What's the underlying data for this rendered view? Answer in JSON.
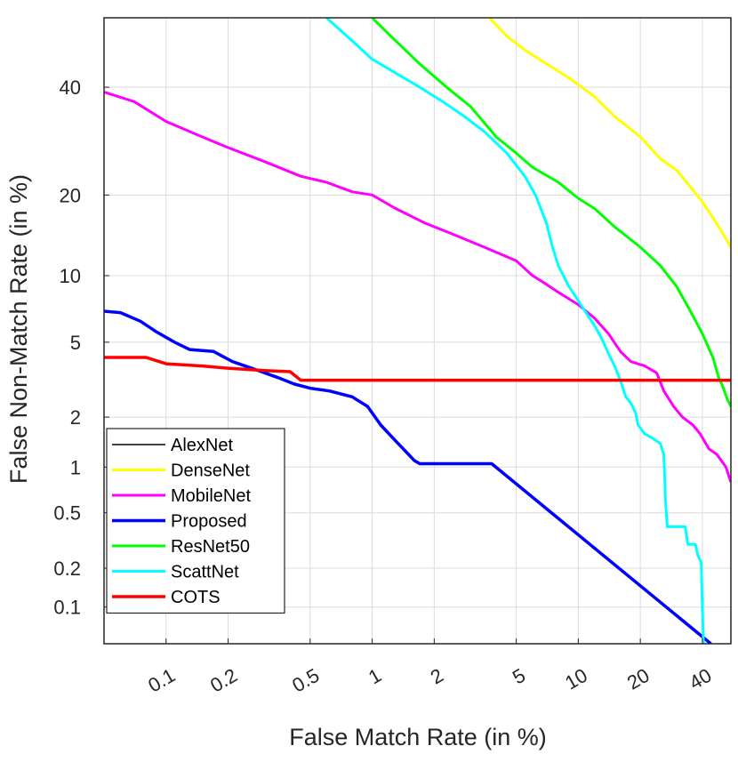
{
  "chart_data": {
    "type": "line",
    "title": "",
    "xlabel": "False Match Rate (in %)",
    "ylabel": "False Non-Match Rate (in %)",
    "xscale": "log",
    "yscale": "probit",
    "xlim": [
      0.05,
      55
    ],
    "ylim": [
      0.05,
      55
    ],
    "grid": true,
    "legend_position": "bottom-left",
    "x_ticks": [
      {
        "value": 0.1,
        "label": "0.1"
      },
      {
        "value": 0.2,
        "label": "0.2"
      },
      {
        "value": 0.5,
        "label": "0.5"
      },
      {
        "value": 1,
        "label": "1"
      },
      {
        "value": 2,
        "label": "2"
      },
      {
        "value": 5,
        "label": "5"
      },
      {
        "value": 10,
        "label": "10"
      },
      {
        "value": 20,
        "label": "20"
      },
      {
        "value": 40,
        "label": "40"
      }
    ],
    "y_ticks": [
      {
        "value": 40,
        "label": "40"
      },
      {
        "value": 20,
        "label": "20"
      },
      {
        "value": 10,
        "label": "10"
      },
      {
        "value": 5,
        "label": "5"
      },
      {
        "value": 2,
        "label": "2"
      },
      {
        "value": 1,
        "label": "1"
      },
      {
        "value": 0.5,
        "label": "0.5"
      },
      {
        "value": 0.2,
        "label": "0.2"
      },
      {
        "value": 0.1,
        "label": "0.1"
      }
    ],
    "series": [
      {
        "name": "AlexNet",
        "color": "#000000",
        "stroke": 1.5,
        "points": []
      },
      {
        "name": "DenseNet",
        "color": "#ffff00",
        "stroke": 3,
        "points": [
          [
            3.7,
            55
          ],
          [
            4.5,
            51
          ],
          [
            5.5,
            48
          ],
          [
            7,
            45
          ],
          [
            9,
            42
          ],
          [
            12,
            38
          ],
          [
            15,
            34
          ],
          [
            20,
            30
          ],
          [
            25,
            26
          ],
          [
            30,
            24
          ],
          [
            40,
            19
          ],
          [
            48,
            15.5
          ],
          [
            55,
            13
          ]
        ]
      },
      {
        "name": "MobileNet",
        "color": "#ff00ff",
        "stroke": 3,
        "points": [
          [
            0.05,
            39
          ],
          [
            0.07,
            37
          ],
          [
            0.1,
            33
          ],
          [
            0.15,
            30
          ],
          [
            0.2,
            28
          ],
          [
            0.3,
            25.5
          ],
          [
            0.45,
            23
          ],
          [
            0.6,
            22
          ],
          [
            0.8,
            20.5
          ],
          [
            1,
            20
          ],
          [
            1.3,
            18
          ],
          [
            1.8,
            16
          ],
          [
            2.5,
            14.5
          ],
          [
            3.5,
            13
          ],
          [
            5,
            11.5
          ],
          [
            6,
            10
          ],
          [
            7,
            9.2
          ],
          [
            8,
            8.5
          ],
          [
            10,
            7.5
          ],
          [
            12,
            6.5
          ],
          [
            14,
            5.5
          ],
          [
            16,
            4.5
          ],
          [
            18,
            4
          ],
          [
            21,
            3.8
          ],
          [
            24,
            3.5
          ],
          [
            26,
            2.8
          ],
          [
            29,
            2.3
          ],
          [
            32,
            2.0
          ],
          [
            36,
            1.8
          ],
          [
            39,
            1.6
          ],
          [
            43,
            1.3
          ],
          [
            47,
            1.2
          ],
          [
            52,
            1.0
          ],
          [
            55,
            0.8
          ]
        ]
      },
      {
        "name": "Proposed",
        "color": "#0000ff",
        "stroke": 3.5,
        "points": [
          [
            0.05,
            7.0
          ],
          [
            0.06,
            6.9
          ],
          [
            0.075,
            6.3
          ],
          [
            0.09,
            5.6
          ],
          [
            0.11,
            5.0
          ],
          [
            0.13,
            4.6
          ],
          [
            0.17,
            4.5
          ],
          [
            0.21,
            4.0
          ],
          [
            0.28,
            3.6
          ],
          [
            0.35,
            3.3
          ],
          [
            0.42,
            3.05
          ],
          [
            0.5,
            2.9
          ],
          [
            0.62,
            2.8
          ],
          [
            0.8,
            2.6
          ],
          [
            0.95,
            2.3
          ],
          [
            1.1,
            1.8
          ],
          [
            1.3,
            1.45
          ],
          [
            1.5,
            1.2
          ],
          [
            1.6,
            1.1
          ],
          [
            1.7,
            1.05
          ],
          [
            3.8,
            1.05
          ],
          [
            44,
            0.05
          ]
        ]
      },
      {
        "name": "ResNet50",
        "color": "#00ff00",
        "stroke": 3,
        "points": [
          [
            1.0,
            55
          ],
          [
            1.3,
            50
          ],
          [
            1.7,
            45
          ],
          [
            2.3,
            40
          ],
          [
            3,
            36
          ],
          [
            4,
            30
          ],
          [
            5,
            27
          ],
          [
            6,
            24.5
          ],
          [
            8,
            22
          ],
          [
            10,
            19.5
          ],
          [
            12,
            18
          ],
          [
            15,
            15.5
          ],
          [
            20,
            13
          ],
          [
            25,
            11
          ],
          [
            30,
            9
          ],
          [
            35,
            7
          ],
          [
            40,
            5.5
          ],
          [
            45,
            4.2
          ],
          [
            48,
            3.3
          ],
          [
            50,
            3.0
          ],
          [
            53,
            2.5
          ],
          [
            55,
            2.3
          ]
        ]
      },
      {
        "name": "ScattNet",
        "color": "#00ffff",
        "stroke": 3,
        "points": [
          [
            0.6,
            55
          ],
          [
            0.8,
            50
          ],
          [
            1,
            46
          ],
          [
            1.3,
            43
          ],
          [
            1.7,
            40
          ],
          [
            2.2,
            37
          ],
          [
            2.8,
            34
          ],
          [
            3.5,
            31
          ],
          [
            4.5,
            27
          ],
          [
            5.5,
            23
          ],
          [
            6.2,
            20
          ],
          [
            7,
            16
          ],
          [
            7.5,
            13
          ],
          [
            8,
            11
          ],
          [
            9,
            9
          ],
          [
            10,
            7.8
          ],
          [
            11,
            6.8
          ],
          [
            12,
            6.0
          ],
          [
            13,
            5.2
          ],
          [
            14,
            4.4
          ],
          [
            15,
            3.8
          ],
          [
            16,
            3.2
          ],
          [
            17,
            2.6
          ],
          [
            18,
            2.4
          ],
          [
            19,
            2.1
          ],
          [
            19.5,
            1.8
          ],
          [
            21,
            1.6
          ],
          [
            23,
            1.5
          ],
          [
            25,
            1.4
          ],
          [
            26,
            1.2
          ],
          [
            26.5,
            0.6
          ],
          [
            27,
            0.4
          ],
          [
            33,
            0.4
          ],
          [
            34,
            0.3
          ],
          [
            37,
            0.3
          ],
          [
            38,
            0.25
          ],
          [
            39.5,
            0.22
          ],
          [
            40,
            0.1
          ],
          [
            40.5,
            0.05
          ]
        ]
      },
      {
        "name": "COTS",
        "color": "#ff0000",
        "stroke": 3.5,
        "points": [
          [
            0.05,
            4.2
          ],
          [
            0.08,
            4.2
          ],
          [
            0.1,
            3.9
          ],
          [
            0.15,
            3.8
          ],
          [
            0.2,
            3.7
          ],
          [
            0.3,
            3.6
          ],
          [
            0.4,
            3.55
          ],
          [
            0.45,
            3.2
          ],
          [
            0.6,
            3.2
          ],
          [
            55,
            3.2
          ]
        ]
      }
    ]
  }
}
